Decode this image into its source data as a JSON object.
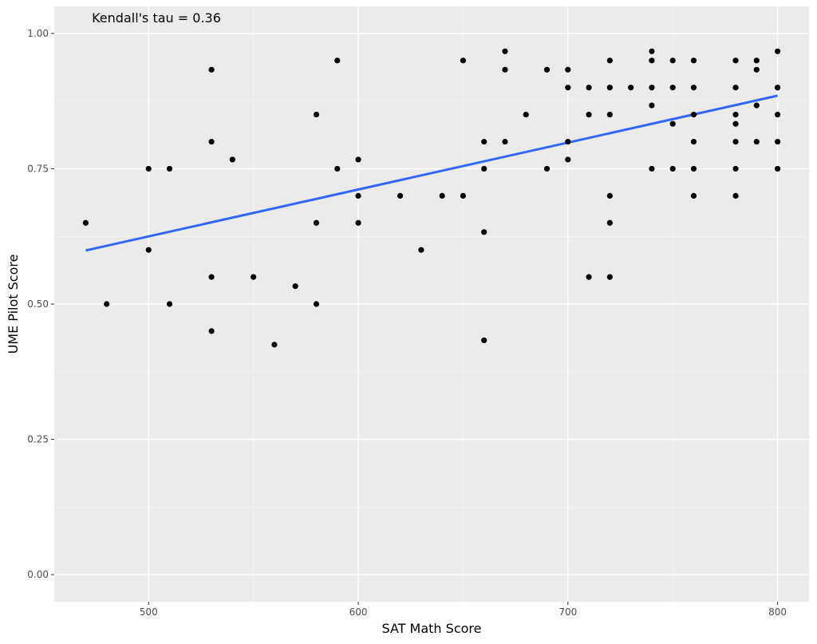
{
  "chart_data": {
    "type": "scatter",
    "xlabel": "SAT Math Score",
    "ylabel": "UME Pilot Score",
    "xlim": [
      455,
      815
    ],
    "ylim": [
      -0.05,
      1.05
    ],
    "x_ticks": [
      500,
      600,
      700,
      800
    ],
    "x_minor": [
      450,
      550,
      650,
      750
    ],
    "y_ticks": [
      0.0,
      0.25,
      0.5,
      0.75,
      1.0
    ],
    "y_tick_labels": [
      "0.00",
      "0.25",
      "0.50",
      "0.75",
      "1.00"
    ],
    "y_minor": [
      0.125,
      0.375,
      0.625,
      0.875
    ],
    "annotation": "Kendall's tau = 0.36",
    "grid": true,
    "points": [
      [
        470,
        0.65
      ],
      [
        480,
        0.5
      ],
      [
        500,
        0.75
      ],
      [
        500,
        0.6
      ],
      [
        510,
        0.75
      ],
      [
        510,
        0.5
      ],
      [
        530,
        0.933
      ],
      [
        530,
        0.8
      ],
      [
        530,
        0.55
      ],
      [
        530,
        0.45
      ],
      [
        540,
        0.767
      ],
      [
        550,
        0.55
      ],
      [
        560,
        0.425
      ],
      [
        570,
        0.533
      ],
      [
        580,
        0.85
      ],
      [
        580,
        0.65
      ],
      [
        580,
        0.5
      ],
      [
        590,
        0.95
      ],
      [
        590,
        0.75
      ],
      [
        600,
        0.767
      ],
      [
        600,
        0.7
      ],
      [
        600,
        0.65
      ],
      [
        620,
        0.7
      ],
      [
        630,
        0.6
      ],
      [
        640,
        0.7
      ],
      [
        650,
        0.95
      ],
      [
        650,
        0.7
      ],
      [
        660,
        0.8
      ],
      [
        660,
        0.75
      ],
      [
        660,
        0.633
      ],
      [
        660,
        0.433
      ],
      [
        670,
        0.967
      ],
      [
        670,
        0.933
      ],
      [
        670,
        0.8
      ],
      [
        680,
        0.85
      ],
      [
        690,
        0.933
      ],
      [
        690,
        0.75
      ],
      [
        700,
        0.933
      ],
      [
        700,
        0.9
      ],
      [
        700,
        0.8
      ],
      [
        700,
        0.767
      ],
      [
        710,
        0.9
      ],
      [
        710,
        0.85
      ],
      [
        710,
        0.55
      ],
      [
        720,
        0.95
      ],
      [
        720,
        0.9
      ],
      [
        720,
        0.85
      ],
      [
        720,
        0.7
      ],
      [
        720,
        0.65
      ],
      [
        720,
        0.55
      ],
      [
        730,
        0.9
      ],
      [
        740,
        0.967
      ],
      [
        740,
        0.95
      ],
      [
        740,
        0.9
      ],
      [
        740,
        0.867
      ],
      [
        740,
        0.75
      ],
      [
        750,
        0.95
      ],
      [
        750,
        0.9
      ],
      [
        750,
        0.833
      ],
      [
        750,
        0.75
      ],
      [
        760,
        0.95
      ],
      [
        760,
        0.9
      ],
      [
        760,
        0.85
      ],
      [
        760,
        0.8
      ],
      [
        760,
        0.75
      ],
      [
        760,
        0.7
      ],
      [
        780,
        0.95
      ],
      [
        780,
        0.9
      ],
      [
        780,
        0.85
      ],
      [
        780,
        0.833
      ],
      [
        780,
        0.8
      ],
      [
        780,
        0.75
      ],
      [
        780,
        0.7
      ],
      [
        790,
        0.95
      ],
      [
        790,
        0.933
      ],
      [
        790,
        0.867
      ],
      [
        790,
        0.8
      ],
      [
        800,
        0.967
      ],
      [
        800,
        0.9
      ],
      [
        800,
        0.85
      ],
      [
        800,
        0.8
      ],
      [
        800,
        0.75
      ]
    ],
    "fit_line": {
      "color": "#3366FF",
      "x": [
        470,
        800
      ],
      "y": [
        0.599,
        0.885
      ]
    }
  }
}
